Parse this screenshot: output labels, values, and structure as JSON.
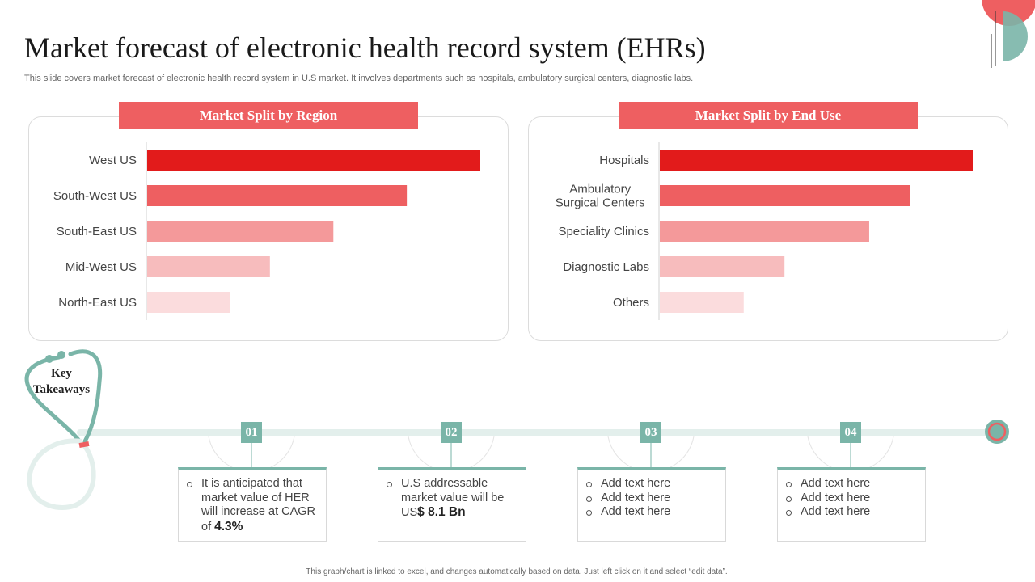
{
  "page": {
    "title": "Market forecast of electronic health record system (EHRs)",
    "subtitle": "This slide covers market forecast of electronic health record system in U.S market. It involves departments such as hospitals, ambulatory surgical centers, diagnostic labs.",
    "footer": "This graph/chart is linked to excel, and changes automatically based on data. Just left click on it and select “edit data”."
  },
  "chart_data": [
    {
      "type": "bar",
      "orientation": "horizontal",
      "title": "Market Split by Region",
      "categories": [
        "West US",
        "South-West US",
        "South-East US",
        "Mid-West US",
        "North-East US"
      ],
      "values": [
        100,
        78,
        56,
        37,
        25
      ],
      "colors": [
        "#e21b1b",
        "#ee5f61",
        "#f4999a",
        "#f7bcbd",
        "#fbdcdd"
      ],
      "xlim": [
        0,
        100
      ],
      "xlabel": "",
      "ylabel": "",
      "grid": false,
      "legend": "none"
    },
    {
      "type": "bar",
      "orientation": "horizontal",
      "title": "Market Split by End Use",
      "categories": [
        "Hospitals",
        "Ambulatory\nSurgical Centers",
        "Speciality Clinics",
        "Diagnostic Labs",
        "Others"
      ],
      "values": [
        100,
        80,
        67,
        40,
        27
      ],
      "colors": [
        "#e21b1b",
        "#ee5f61",
        "#f4999a",
        "#f7bcbd",
        "#fbdcdd"
      ],
      "xlim": [
        0,
        100
      ],
      "xlabel": "",
      "ylabel": "",
      "grid": false,
      "legend": "none"
    }
  ],
  "takeaways": {
    "title_line1": "Key",
    "title_line2": "Takeaways",
    "steps": [
      {
        "num": "01",
        "lines": [
          {
            "pre": "It is anticipated that market value of HER will increase at CAGR of ",
            "strong": "4.3%",
            "post": ""
          }
        ]
      },
      {
        "num": "02",
        "lines": [
          {
            "pre": "U.S addressable market value will be US",
            "strong": "$  8.1 Bn",
            "post": ""
          }
        ]
      },
      {
        "num": "03",
        "lines": [
          {
            "pre": "Add text here",
            "strong": "",
            "post": ""
          },
          {
            "pre": "Add text here",
            "strong": "",
            "post": ""
          },
          {
            "pre": "Add text here",
            "strong": "",
            "post": ""
          }
        ]
      },
      {
        "num": "04",
        "lines": [
          {
            "pre": "Add text here",
            "strong": "",
            "post": ""
          },
          {
            "pre": "Add text here",
            "strong": "",
            "post": ""
          },
          {
            "pre": "Add text here",
            "strong": "",
            "post": ""
          }
        ]
      }
    ]
  },
  "colors": {
    "accent": "#ee5f61",
    "teal": "#7ab5a8"
  }
}
